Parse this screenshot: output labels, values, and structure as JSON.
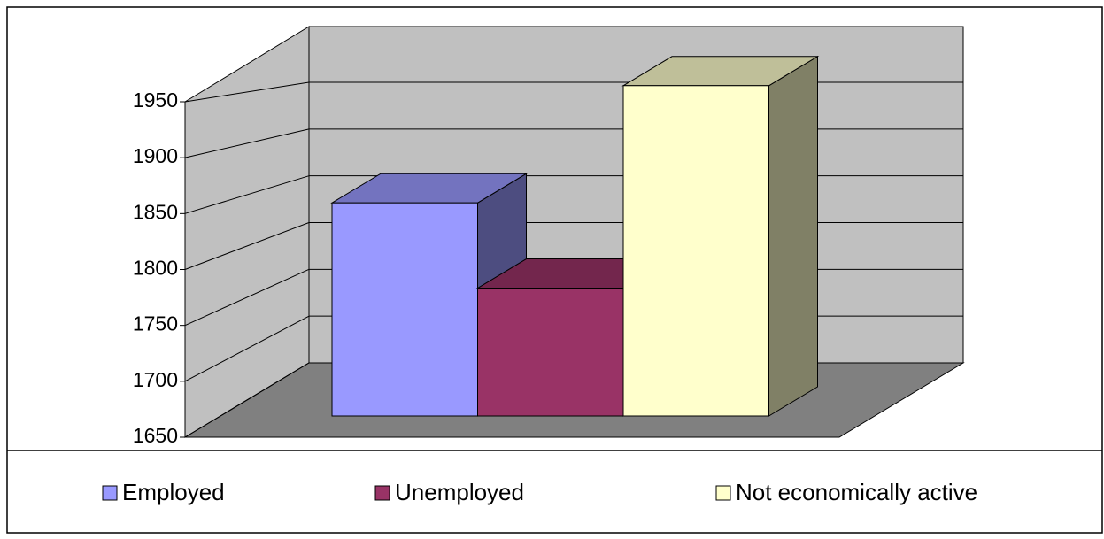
{
  "chart_data": {
    "type": "bar3d",
    "categories": [
      "Employed",
      "Unemployed",
      "Not economically active"
    ],
    "series": [
      {
        "name": "Employed",
        "color": "#9999ff",
        "values": [
          1850,
          null,
          null
        ]
      },
      {
        "name": "Unemployed",
        "color": "#993366",
        "values": [
          null,
          1770,
          null
        ]
      },
      {
        "name": "Not economically active",
        "color": "#ffffcc",
        "values": [
          null,
          null,
          1960
        ]
      }
    ],
    "ylim": [
      1650,
      1950
    ],
    "yticks": [
      1650,
      1700,
      1750,
      1800,
      1850,
      1900,
      1950
    ],
    "grid": true,
    "legend": "bottom"
  }
}
